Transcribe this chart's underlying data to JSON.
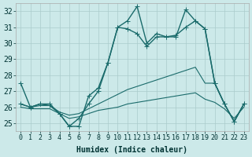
{
  "xlabel": "Humidex (Indice chaleur)",
  "background_color": "#cce9e9",
  "grid_color": "#aacccc",
  "line_color": "#1a6b6b",
  "xlim": [
    -0.5,
    23.5
  ],
  "ylim": [
    24.5,
    32.5
  ],
  "yticks": [
    25,
    26,
    27,
    28,
    29,
    30,
    31,
    32
  ],
  "xticks": [
    0,
    1,
    2,
    3,
    4,
    5,
    6,
    7,
    8,
    9,
    10,
    11,
    12,
    13,
    14,
    15,
    16,
    17,
    18,
    19,
    20,
    21,
    22,
    23
  ],
  "series": [
    {
      "x": [
        0,
        1,
        2,
        3,
        4,
        5,
        6,
        7,
        8,
        9,
        10,
        11,
        12,
        13,
        14,
        15,
        16,
        17,
        18,
        19,
        20,
        21,
        22,
        23
      ],
      "y": [
        27.5,
        26.0,
        26.2,
        26.2,
        25.6,
        24.8,
        24.8,
        26.7,
        27.2,
        28.8,
        31.0,
        31.4,
        32.3,
        30.0,
        30.6,
        30.4,
        30.4,
        32.1,
        31.4,
        30.9,
        27.5,
        26.2,
        25.1,
        26.2
      ],
      "marker": true,
      "linewidth": 1.0
    },
    {
      "x": [
        0,
        1,
        2,
        3,
        4,
        5,
        6,
        7,
        8,
        9,
        10,
        11,
        12,
        13,
        14,
        15,
        16,
        17,
        18,
        19,
        20,
        21,
        22,
        23
      ],
      "y": [
        26.2,
        26.0,
        26.2,
        26.1,
        25.6,
        24.8,
        25.3,
        26.2,
        27.0,
        28.8,
        31.0,
        30.9,
        30.6,
        29.8,
        30.4,
        30.4,
        30.5,
        31.0,
        31.4,
        30.9,
        27.5,
        26.2,
        25.1,
        26.2
      ],
      "marker": true,
      "linewidth": 1.0
    },
    {
      "x": [
        0,
        1,
        2,
        3,
        4,
        5,
        6,
        7,
        8,
        9,
        10,
        11,
        12,
        13,
        14,
        15,
        16,
        17,
        18,
        19,
        20,
        21,
        22,
        23
      ],
      "y": [
        26.2,
        26.0,
        26.1,
        26.1,
        25.7,
        25.5,
        25.6,
        25.9,
        26.2,
        26.5,
        26.8,
        27.1,
        27.3,
        27.5,
        27.7,
        27.9,
        28.1,
        28.3,
        28.5,
        27.5,
        27.5,
        26.2,
        25.1,
        26.2
      ],
      "marker": false,
      "linewidth": 0.8
    },
    {
      "x": [
        0,
        1,
        2,
        3,
        4,
        5,
        6,
        7,
        8,
        9,
        10,
        11,
        12,
        13,
        14,
        15,
        16,
        17,
        18,
        19,
        20,
        21,
        22,
        23
      ],
      "y": [
        26.0,
        25.9,
        25.9,
        25.9,
        25.6,
        25.3,
        25.4,
        25.6,
        25.8,
        25.9,
        26.0,
        26.2,
        26.3,
        26.4,
        26.5,
        26.6,
        26.7,
        26.8,
        26.9,
        26.5,
        26.3,
        25.9,
        25.3,
        26.0
      ],
      "marker": false,
      "linewidth": 0.8
    }
  ],
  "marker_symbol": "+",
  "marker_size": 4,
  "font_size": 7
}
